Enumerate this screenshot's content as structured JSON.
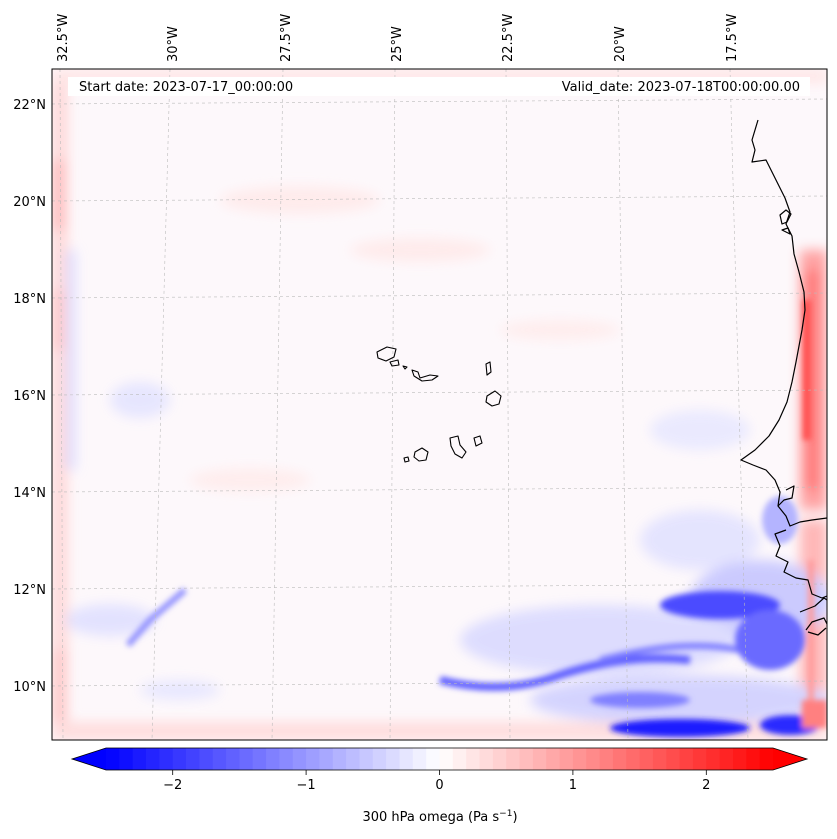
{
  "map": {
    "start_label": "Start date: 2023-07-17_00:00:00",
    "valid_label": "Valid_date: 2023-07-18T00:00:00.00",
    "lon_ticks": [
      "32.5°W",
      "30°W",
      "27.5°W",
      "25°W",
      "22.5°W",
      "20°W",
      "17.5°W"
    ],
    "lat_ticks": [
      "22°N",
      "20°N",
      "18°N",
      "16°N",
      "14°N",
      "12°N",
      "10°N"
    ],
    "lon_values": [
      -32.5,
      -30,
      -27.5,
      -25,
      -22.5,
      -20,
      -17.5
    ],
    "lat_values": [
      22,
      20,
      18,
      16,
      14,
      12,
      10
    ],
    "extent": {
      "lon_min": -33.0,
      "lon_max": -16.0,
      "lat_min": 8.8,
      "lat_max": 22.8
    },
    "coastline_color": "#000000",
    "gridline_color": "#bbbbbb"
  },
  "colorbar": {
    "label": "300 hPa omega (Pa s",
    "label_sup": "−1",
    "label_end": ")",
    "ticks": [
      "−2",
      "−1",
      "0",
      "1",
      "2"
    ],
    "tick_values": [
      -2,
      -1,
      0,
      1,
      2
    ],
    "range": [
      -2.5,
      2.5
    ],
    "levels": 50,
    "colormap": "bwr",
    "color_min": "#0000ff",
    "color_mid": "#ffffff",
    "color_max": "#ff0000",
    "extend": "both"
  }
}
